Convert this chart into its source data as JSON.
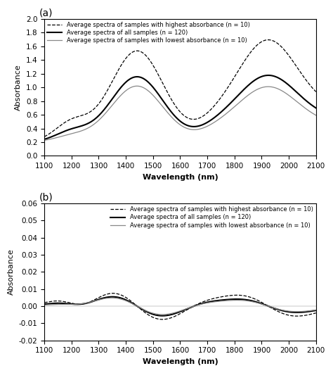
{
  "title_a": "(a)",
  "title_b": "(b)",
  "xlabel": "Wavelength (nm)",
  "ylabel": "Absorbance",
  "xlim": [
    1100,
    2100
  ],
  "xticks": [
    1100,
    1200,
    1300,
    1400,
    1500,
    1600,
    1700,
    1800,
    1900,
    2000,
    2100
  ],
  "legend_highest": "Average spectra of samples with highest absorbance (n = 10)",
  "legend_all": "Average spectra of all samples (n = 120)",
  "legend_lowest": "Average spectra of samples with lowest absorbance (n = 10)",
  "panel_a": {
    "ylim": [
      0.0,
      2.0
    ],
    "yticks": [
      0.0,
      0.2,
      0.4,
      0.6,
      0.8,
      1.0,
      1.2,
      1.4,
      1.6,
      1.8,
      2.0
    ]
  },
  "panel_b": {
    "ylim": [
      -0.02,
      0.06
    ],
    "yticks": [
      -0.02,
      -0.01,
      0.0,
      0.01,
      0.02,
      0.03,
      0.04,
      0.05,
      0.06
    ]
  }
}
